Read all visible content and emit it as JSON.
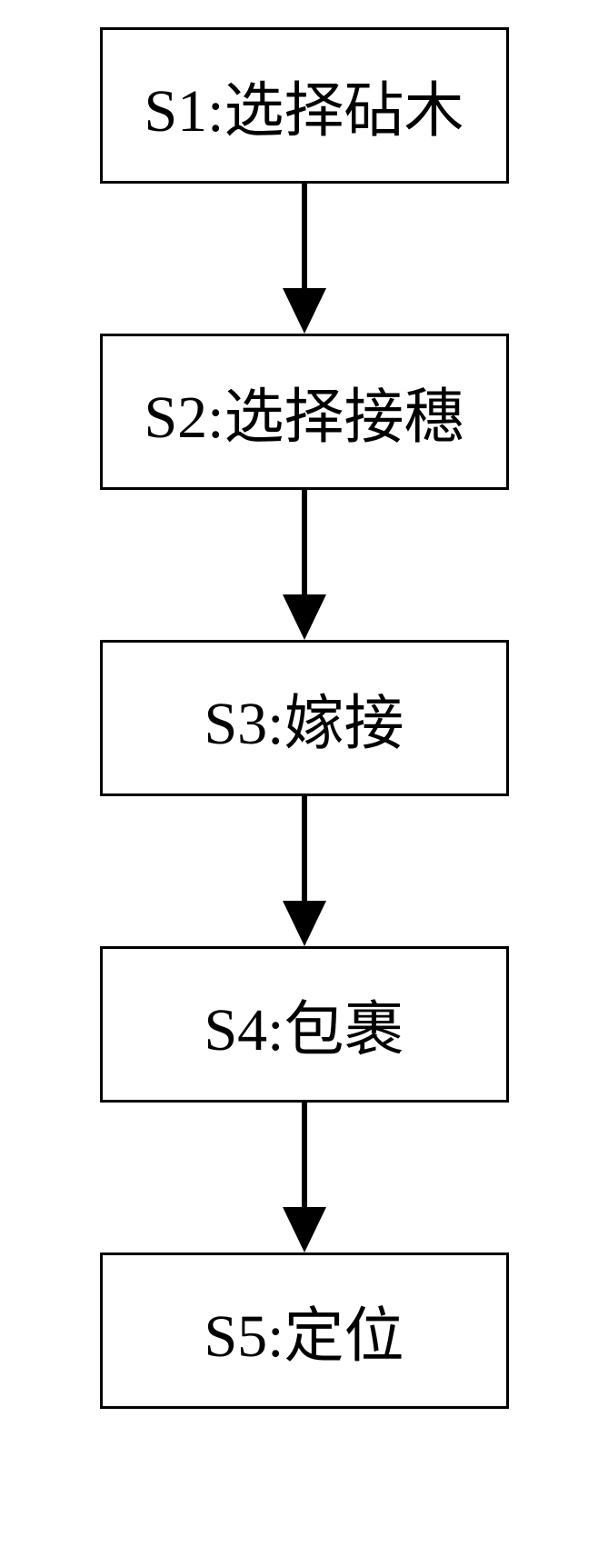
{
  "flowchart": {
    "type": "flowchart",
    "background_color": "#ffffff",
    "box_border_color": "#000000",
    "box_border_width": 3,
    "box_background_color": "#ffffff",
    "text_color": "#000000",
    "font_size": 66,
    "font_family": "SimSun",
    "arrow_color": "#000000",
    "arrow_line_width": 6,
    "arrow_head_width": 48,
    "arrow_head_height": 50,
    "box_min_width": 450,
    "steps": [
      {
        "label": "S1:选择砧木"
      },
      {
        "label": "S2:选择接穗"
      },
      {
        "label": "S3:嫁接"
      },
      {
        "label": "S4:包裹"
      },
      {
        "label": "S5:定位"
      }
    ]
  }
}
